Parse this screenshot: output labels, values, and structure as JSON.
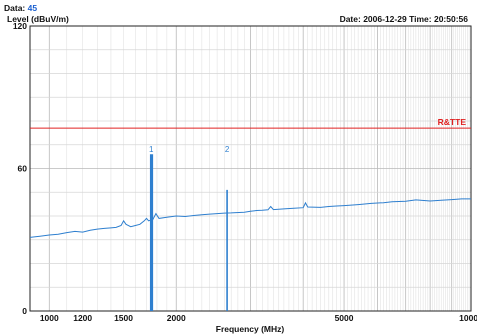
{
  "header": {
    "data_label": "Data:",
    "data_value": "45",
    "date_label": "Date:",
    "date_value": "2006-12-29",
    "time_label": "Time:",
    "time_value": "20:50:56"
  },
  "chart_data": {
    "type": "line",
    "ylabel": "Level (dBuV/m)",
    "xlabel": "Frequency (MHz)",
    "xscale": "log",
    "xlim": [
      900,
      10000
    ],
    "ylim": [
      0,
      120
    ],
    "y_ticks": [
      {
        "value": 0,
        "label": "0"
      },
      {
        "value": 60,
        "label": "60"
      },
      {
        "value": 120,
        "label": "120"
      }
    ],
    "x_ticks": [
      {
        "value": 1000,
        "label": "1000"
      },
      {
        "value": 1200,
        "label": "1200"
      },
      {
        "value": 1500,
        "label": "1500"
      },
      {
        "value": 2000,
        "label": "2000"
      },
      {
        "value": 5000,
        "label": "5000"
      },
      {
        "value": 10000,
        "label": "10000"
      }
    ],
    "grid": true,
    "limit_line": {
      "name": "R&TTE",
      "value": 77,
      "color": "#e02020"
    },
    "series": [
      {
        "color": "#2e7fcf",
        "points": [
          [
            900,
            31
          ],
          [
            950,
            31.5
          ],
          [
            1000,
            32
          ],
          [
            1050,
            32.3
          ],
          [
            1100,
            33
          ],
          [
            1150,
            33.5
          ],
          [
            1200,
            33.2
          ],
          [
            1250,
            34
          ],
          [
            1300,
            34.5
          ],
          [
            1350,
            34.8
          ],
          [
            1400,
            35
          ],
          [
            1440,
            35.2
          ],
          [
            1480,
            36
          ],
          [
            1500,
            38
          ],
          [
            1520,
            36.5
          ],
          [
            1560,
            35.5
          ],
          [
            1600,
            36
          ],
          [
            1640,
            36.5
          ],
          [
            1680,
            38
          ],
          [
            1700,
            39
          ],
          [
            1720,
            38
          ],
          [
            1760,
            38.5
          ],
          [
            1790,
            41
          ],
          [
            1820,
            39
          ],
          [
            1900,
            39.5
          ],
          [
            2000,
            40
          ],
          [
            2100,
            39.8
          ],
          [
            2200,
            40.2
          ],
          [
            2300,
            40.5
          ],
          [
            2400,
            40.8
          ],
          [
            2500,
            41
          ],
          [
            2600,
            41.2
          ],
          [
            2700,
            41.3
          ],
          [
            2900,
            41.6
          ],
          [
            3000,
            42
          ],
          [
            3100,
            42.3
          ],
          [
            3200,
            42.4
          ],
          [
            3300,
            42.6
          ],
          [
            3350,
            44
          ],
          [
            3400,
            42.7
          ],
          [
            3600,
            43
          ],
          [
            3800,
            43.3
          ],
          [
            4000,
            43.5
          ],
          [
            4050,
            45.5
          ],
          [
            4100,
            43.8
          ],
          [
            4400,
            43.6
          ],
          [
            4600,
            44
          ],
          [
            4800,
            44.2
          ],
          [
            5000,
            44.4
          ],
          [
            5400,
            44.8
          ],
          [
            5800,
            45.3
          ],
          [
            6200,
            45.6
          ],
          [
            6500,
            46
          ],
          [
            7000,
            46.2
          ],
          [
            7400,
            46.8
          ],
          [
            7800,
            46.5
          ],
          [
            8000,
            46.3
          ],
          [
            8500,
            46.6
          ],
          [
            9000,
            46.9
          ],
          [
            9500,
            47.2
          ],
          [
            10000,
            47.2
          ]
        ]
      }
    ],
    "spikes": [
      {
        "x": 1740,
        "y": 66
      },
      {
        "x": 1755,
        "y": 66
      },
      {
        "x": 2640,
        "y": 51
      }
    ],
    "markers": [
      {
        "label": "1",
        "x": 1745,
        "y": 67
      },
      {
        "label": "2",
        "x": 2640,
        "y": 67
      }
    ]
  }
}
